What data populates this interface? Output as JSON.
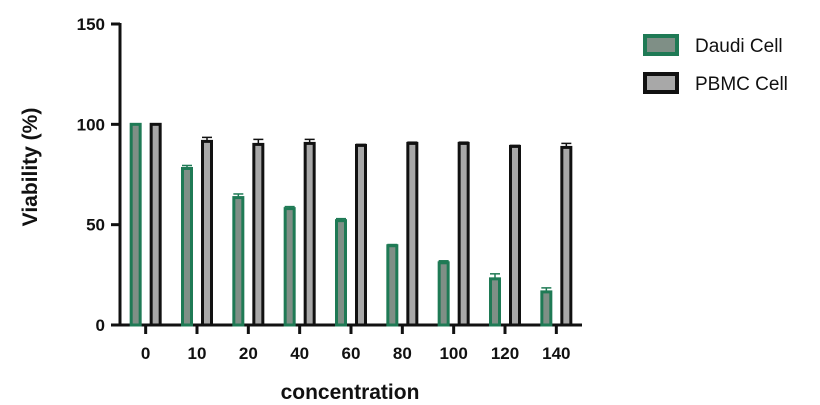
{
  "chart_data": {
    "type": "bar",
    "xlabel": "concentration",
    "ylabel": "Viability (%)",
    "ylim": [
      0,
      150
    ],
    "yticks": [
      0,
      50,
      100,
      150
    ],
    "categories": [
      "0",
      "10",
      "20",
      "40",
      "60",
      "80",
      "100",
      "120",
      "140"
    ],
    "legend_position": "top-right",
    "series": [
      {
        "name": "Daudi Cell",
        "fill": "#1f7a55",
        "inner_fill": "#7f8f86",
        "values": [
          100,
          78,
          63.5,
          58,
          52,
          39.5,
          31,
          23,
          16.5
        ],
        "errors": [
          0,
          1.5,
          1.8,
          1.0,
          1.0,
          0.6,
          1.0,
          2.5,
          2.0
        ]
      },
      {
        "name": "PBMC Cell",
        "fill": "#111111",
        "inner_fill": "#a8a8a8",
        "values": [
          100,
          91.5,
          90,
          90.5,
          89.5,
          90.5,
          90.5,
          89,
          88.5
        ],
        "errors": [
          0,
          2.0,
          2.5,
          2.0,
          0.5,
          0.6,
          0.6,
          0.5,
          2.0
        ]
      }
    ]
  }
}
